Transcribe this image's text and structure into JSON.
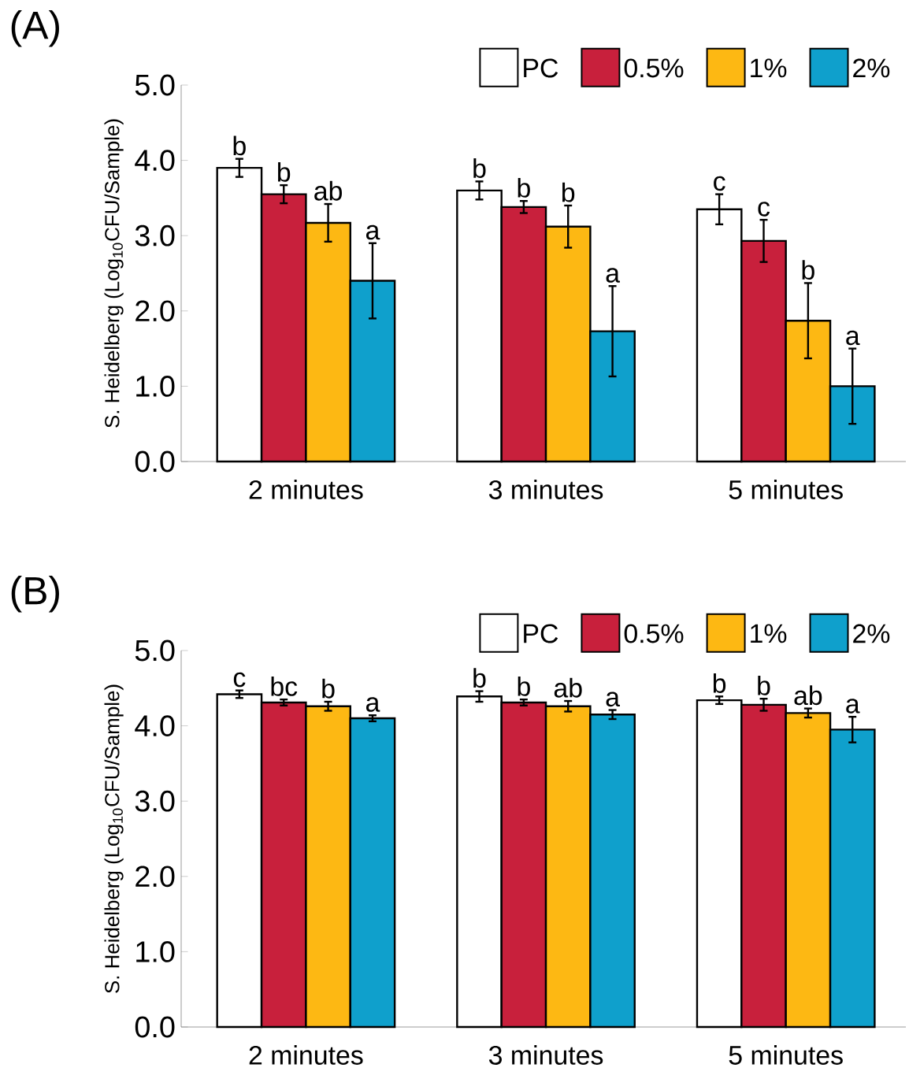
{
  "chart_data": [
    {
      "type": "bar",
      "title": "(A)",
      "ylabel": "S. Heidelberg (Log$_{10}$CFU/Sample)",
      "categories": [
        "2 minutes",
        "3 minutes",
        "5 minutes"
      ],
      "series": [
        {
          "name": "PC",
          "color": "#ffffff",
          "values": [
            3.9,
            3.6,
            3.35
          ],
          "errors": [
            0.12,
            0.12,
            0.2
          ],
          "value_labels": [
            "b",
            "b",
            "c"
          ]
        },
        {
          "name": "0.5%",
          "color": "#c8203c",
          "values": [
            3.55,
            3.38,
            2.93
          ],
          "errors": [
            0.12,
            0.08,
            0.28
          ],
          "value_labels": [
            "b",
            "b",
            "c"
          ]
        },
        {
          "name": "1%",
          "color": "#fdb813",
          "values": [
            3.17,
            3.12,
            1.87
          ],
          "errors": [
            0.25,
            0.28,
            0.5
          ],
          "value_labels": [
            "ab",
            "b",
            "b"
          ]
        },
        {
          "name": "2%",
          "color": "#0fa0cc",
          "values": [
            2.4,
            1.73,
            1.0
          ],
          "errors": [
            0.5,
            0.6,
            0.5
          ],
          "value_labels": [
            "a",
            "a",
            "a"
          ]
        }
      ],
      "ylim": [
        0,
        5
      ],
      "yticks": [
        {
          "value": 0,
          "label": "0.0"
        },
        {
          "value": 1,
          "label": "1.0"
        },
        {
          "value": 2,
          "label": "2.0"
        },
        {
          "value": 3,
          "label": "3.0"
        },
        {
          "value": 4,
          "label": "4.0"
        },
        {
          "value": 5,
          "label": "5.0"
        }
      ],
      "legend": "top right"
    },
    {
      "type": "bar",
      "title": "(B)",
      "ylabel": "S. Heidelberg (Log$_{10}$CFU/Sample)",
      "categories": [
        "2 minutes",
        "3 minutes",
        "5 minutes"
      ],
      "series": [
        {
          "name": "PC",
          "color": "#ffffff",
          "values": [
            4.42,
            4.39,
            4.34
          ],
          "errors": [
            0.05,
            0.07,
            0.05
          ],
          "value_labels": [
            "c",
            "b",
            "b"
          ]
        },
        {
          "name": "0.5%",
          "color": "#c8203c",
          "values": [
            4.31,
            4.31,
            4.28
          ],
          "errors": [
            0.04,
            0.04,
            0.08
          ],
          "value_labels": [
            "bc",
            "b",
            "b"
          ]
        },
        {
          "name": "1%",
          "color": "#fdb813",
          "values": [
            4.26,
            4.26,
            4.17
          ],
          "errors": [
            0.06,
            0.07,
            0.06
          ],
          "value_labels": [
            "b",
            "ab",
            "ab"
          ]
        },
        {
          "name": "2%",
          "color": "#0fa0cc",
          "values": [
            4.1,
            4.15,
            3.95
          ],
          "errors": [
            0.04,
            0.06,
            0.17
          ],
          "value_labels": [
            "a",
            "a",
            "a"
          ]
        }
      ],
      "ylim": [
        0,
        5
      ],
      "yticks": [
        {
          "value": 0,
          "label": "0.0"
        },
        {
          "value": 1,
          "label": "1.0"
        },
        {
          "value": 2,
          "label": "2.0"
        },
        {
          "value": 3,
          "label": "3.0"
        },
        {
          "value": 4,
          "label": "4.0"
        },
        {
          "value": 5,
          "label": "5.0"
        }
      ],
      "legend": "top right"
    }
  ]
}
